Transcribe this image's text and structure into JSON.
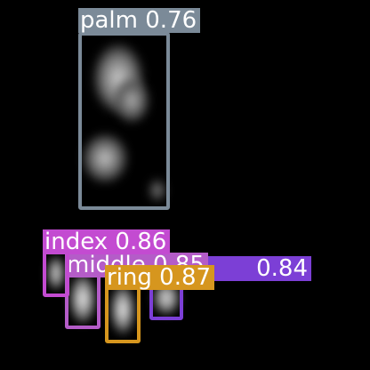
{
  "detections": [
    {
      "class": "palm",
      "score": "0.76",
      "color": "#7b8a98"
    },
    {
      "class": "index",
      "score": "0.86",
      "color": "#c34bd1"
    },
    {
      "class": "ring",
      "score": "0.84",
      "color": "#7c3fd6"
    },
    {
      "class": "middle",
      "score": "0.85",
      "color": "#b45cc8"
    },
    {
      "class": "ring",
      "score": "0.87",
      "color": "#d6961e"
    }
  ]
}
